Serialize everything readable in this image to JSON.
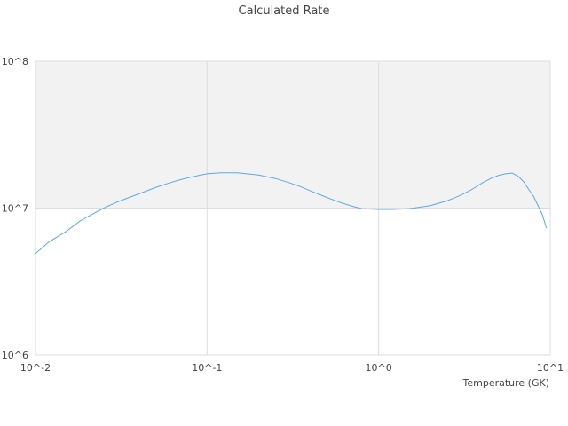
{
  "chart_data": {
    "type": "line",
    "title": "Calculated Rate",
    "xlabel": "Temperature (GK)",
    "ylabel": "",
    "xscale": "log",
    "yscale": "log",
    "xlim": [
      0.01,
      10
    ],
    "ylim": [
      1000000,
      100000000
    ],
    "x_tick_labels": [
      "10^-2",
      "10^-1",
      "10^0",
      "10^1"
    ],
    "y_tick_labels": [
      "10^8",
      "10^7",
      "10^6"
    ],
    "grid": true,
    "legend": "none",
    "shaded_band": {
      "from": 10000000,
      "to": 100000000,
      "color": "#f2f2f2"
    },
    "series": [
      {
        "color": "#5aa9e6",
        "x": [
          0.01,
          0.012,
          0.015,
          0.018,
          0.02,
          0.025,
          0.03,
          0.035,
          0.04,
          0.05,
          0.06,
          0.07,
          0.08,
          0.09,
          0.1,
          0.12,
          0.15,
          0.2,
          0.25,
          0.3,
          0.35,
          0.4,
          0.5,
          0.6,
          0.7,
          0.8,
          1.0,
          1.2,
          1.5,
          2.0,
          2.5,
          3.0,
          3.5,
          4.0,
          4.5,
          5.0,
          5.5,
          6.0,
          6.5,
          7.0,
          7.5,
          8.0,
          9.0,
          9.5
        ],
        "y": [
          4900000,
          5900000,
          6900000,
          8100000,
          8700000,
          10000000,
          11000000,
          11800000,
          12500000,
          13800000,
          14800000,
          15600000,
          16200000,
          16700000,
          17100000,
          17400000,
          17400000,
          16800000,
          15900000,
          14900000,
          14000000,
          13100000,
          11800000,
          10900000,
          10300000,
          9900000,
          9800000,
          9800000,
          9900000,
          10400000,
          11200000,
          12200000,
          13400000,
          14800000,
          15900000,
          16700000,
          17100000,
          17300000,
          16500000,
          15100000,
          13400000,
          12000000,
          9000000,
          7300000
        ]
      }
    ]
  }
}
